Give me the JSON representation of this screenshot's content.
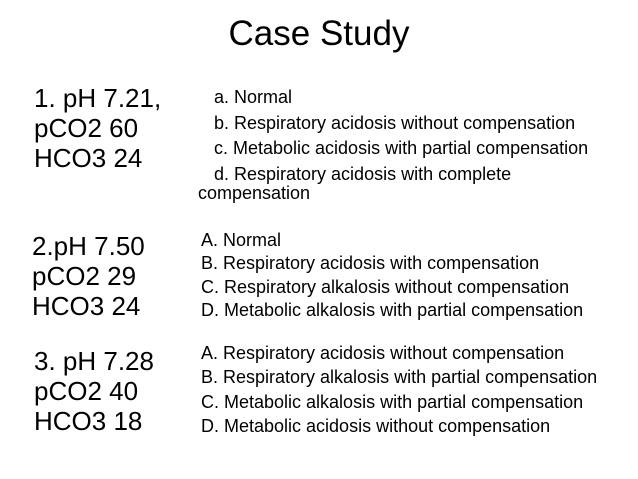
{
  "slide": {
    "title": "Case Study",
    "text_color": "#000000",
    "background_color": "#ffffff",
    "questions": [
      {
        "number": "1",
        "values": [
          "1. pH 7.21,",
          "pCO2 60",
          "HCO3 24"
        ],
        "options": [
          "a. Normal",
          "b. Respiratory acidosis without compensation",
          "c. Metabolic acidosis with partial compensation",
          "d. Respiratory acidosis with complete compensation"
        ]
      },
      {
        "number": "2",
        "values": [
          "2.pH 7.50",
          "pCO2 29",
          "HCO3 24"
        ],
        "options": [
          "A. Normal",
          "B. Respiratory acidosis with compensation",
          "C. Respiratory alkalosis without compensation",
          "D. Metabolic alkalosis with partial compensation"
        ]
      },
      {
        "number": "3",
        "values": [
          "3. pH 7.28",
          "pCO2 40",
          "HCO3 18"
        ],
        "options": [
          "A. Respiratory acidosis without compensation",
          "B. Respiratory alkalosis with partial compensation",
          "C. Metabolic alkalosis with partial compensation",
          "D. Metabolic acidosis without compensation"
        ]
      }
    ]
  }
}
